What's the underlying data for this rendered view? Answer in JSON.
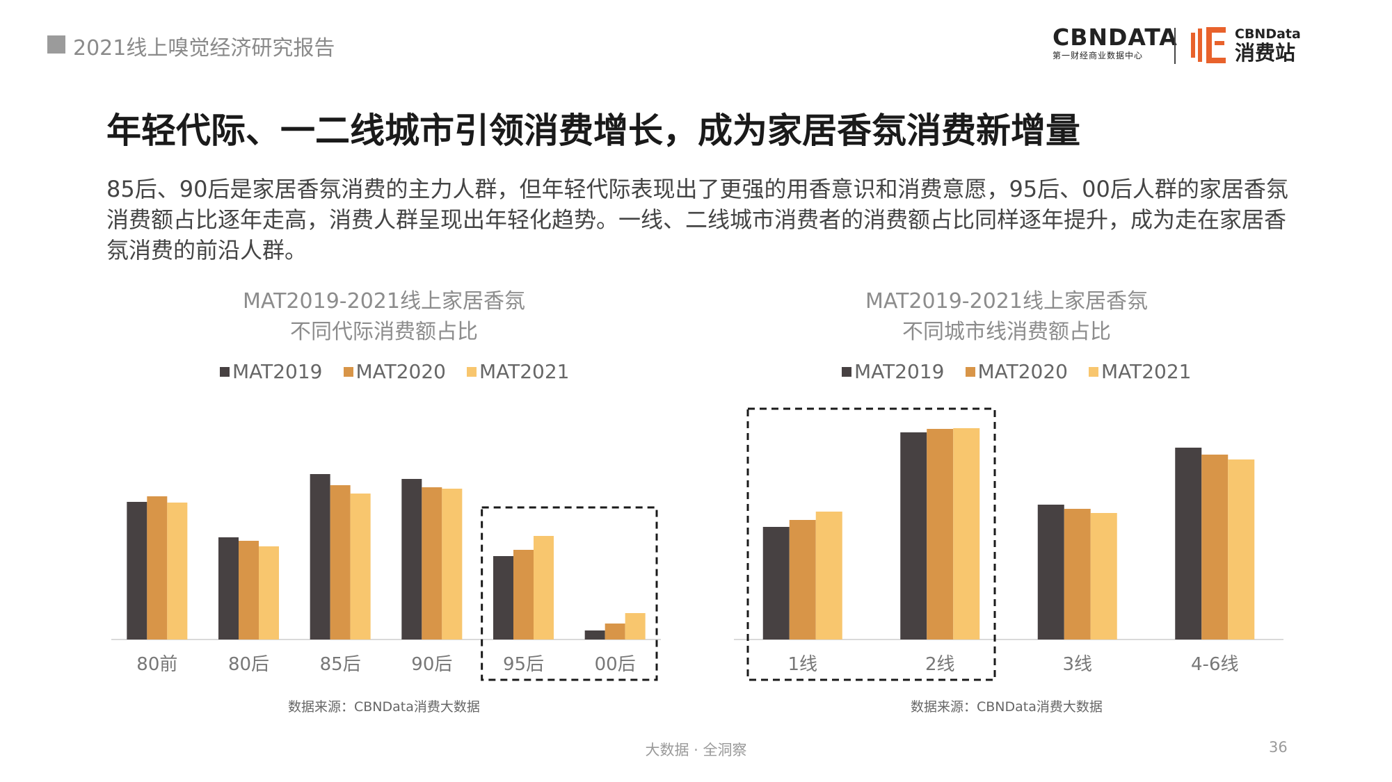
{
  "header": {
    "report_title": "2021线上嗅觉经济研究报告",
    "logo_main": "CBNDATA",
    "logo_main_sub": "第一财经商业数据中心",
    "logo_second_top": "CBNData",
    "logo_second_bottom": "消费站"
  },
  "headline": "年轻代际、一二线城市引领消费增长，成为家居香氛消费新增量",
  "body_text": "85后、90后是家居香氛消费的主力人群，但年轻代际表现出了更强的用香意识和消费意愿，95后、00后人群的家居香氛消费额占比逐年走高，消费人群呈现出年轻化趋势。一线、二线城市消费者的消费额占比同样逐年提升，成为走在家居香氛消费的前沿人群。",
  "colors": {
    "MAT2019": "#474142",
    "MAT2020": "#d89548",
    "MAT2021": "#f8c66e"
  },
  "chart_data": [
    {
      "type": "bar",
      "title": "MAT2019-2021线上家居香氛",
      "subtitle": "不同代际消费额占比",
      "legend_position": "top",
      "categories": [
        "80前",
        "80后",
        "85后",
        "90后",
        "95后",
        "00后"
      ],
      "series": [
        {
          "name": "MAT2019",
          "values": [
            19.8,
            14.7,
            23.8,
            23.1,
            12.0,
            1.3
          ]
        },
        {
          "name": "MAT2020",
          "values": [
            20.6,
            14.2,
            22.2,
            21.9,
            12.9,
            2.3
          ]
        },
        {
          "name": "MAT2021",
          "values": [
            19.7,
            13.4,
            21.0,
            21.7,
            14.9,
            3.8
          ]
        }
      ],
      "ylim": [
        0,
        30
      ],
      "highlight_categories": [
        "95后",
        "00后"
      ],
      "source": "数据来源：CBNData消费大数据"
    },
    {
      "type": "bar",
      "title": "MAT2019-2021线上家居香氛",
      "subtitle": "不同城市线消费额占比",
      "legend_position": "top",
      "categories": [
        "1线",
        "2线",
        "3线",
        "4-6线"
      ],
      "series": [
        {
          "name": "MAT2019",
          "values": [
            16.2,
            29.8,
            19.4,
            27.6
          ]
        },
        {
          "name": "MAT2020",
          "values": [
            17.2,
            30.3,
            18.8,
            26.6
          ]
        },
        {
          "name": "MAT2021",
          "values": [
            18.4,
            30.4,
            18.2,
            25.9
          ]
        }
      ],
      "ylim": [
        0,
        36
      ],
      "highlight_categories": [
        "1线",
        "2线"
      ],
      "source": "数据来源：CBNData消费大数据"
    }
  ],
  "footer": {
    "tagline": "大数据 · 全洞察",
    "page_number": "36"
  }
}
